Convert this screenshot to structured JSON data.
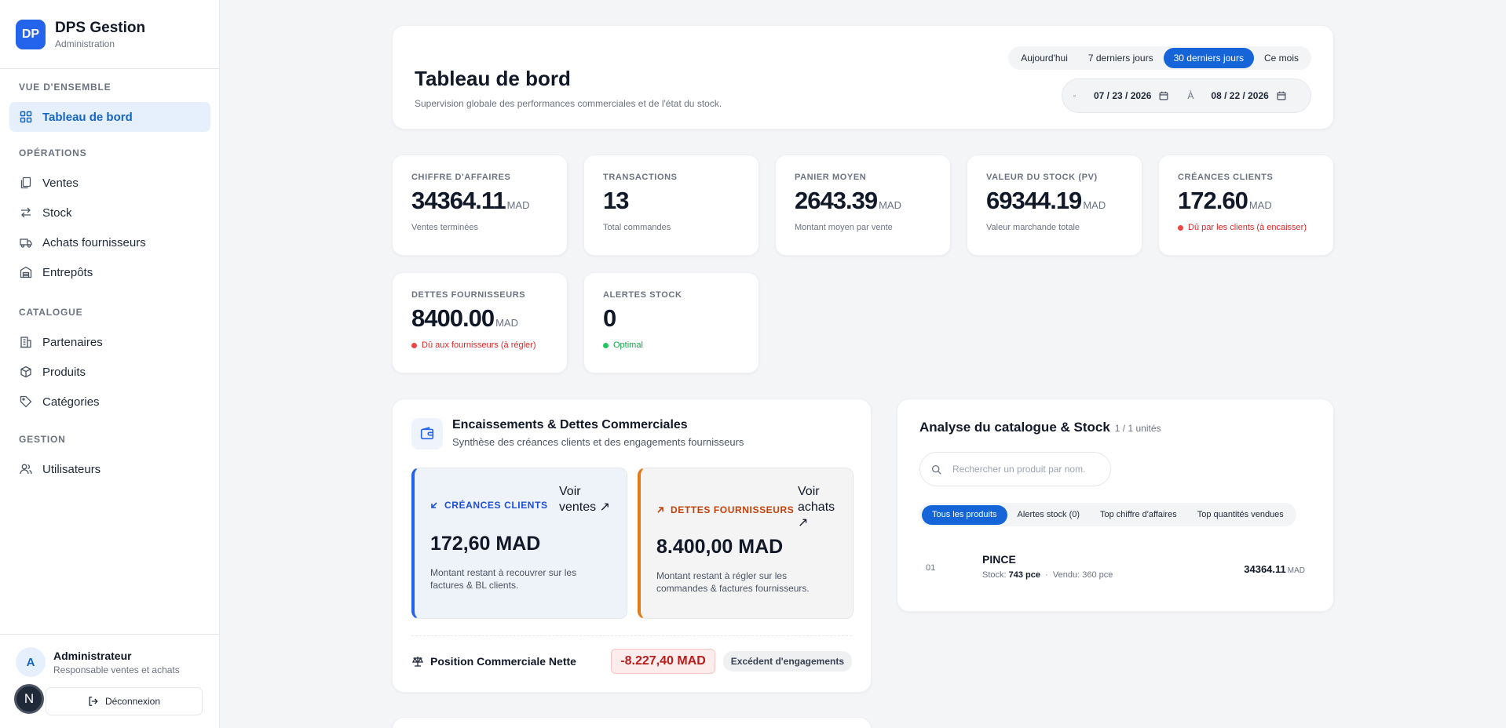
{
  "brand": {
    "logo": "DP",
    "name": "DPS Gestion",
    "subtitle": "Administration"
  },
  "sidebar": {
    "sections": [
      {
        "title": "VUE D'ENSEMBLE"
      },
      {
        "title": "OPÉRATIONS"
      },
      {
        "title": "CATALOGUE"
      },
      {
        "title": "GESTION"
      }
    ],
    "items": [
      {
        "label": "Tableau de bord",
        "icon": "grid-icon",
        "active": true
      },
      {
        "label": "Ventes",
        "icon": "documents-icon"
      },
      {
        "label": "Stock",
        "icon": "swap-arrows-icon"
      },
      {
        "label": "Achats fournisseurs",
        "icon": "truck-icon"
      },
      {
        "label": "Entrepôts",
        "icon": "warehouse-icon"
      },
      {
        "label": "Partenaires",
        "icon": "building-icon"
      },
      {
        "label": "Produits",
        "icon": "box-icon"
      },
      {
        "label": "Catégories",
        "icon": "tag-icon"
      },
      {
        "label": "Utilisateurs",
        "icon": "users-icon"
      }
    ]
  },
  "user": {
    "initial": "A",
    "name": "Administrateur",
    "role": "Responsable ventes et achats",
    "logout_label": "Déconnexion",
    "badge": "N"
  },
  "header": {
    "title": "Tableau de bord",
    "subtitle": "Supervision globale des performances commerciales et de l'état du stock.",
    "periods": [
      "Aujourd'hui",
      "7 derniers jours",
      "30 derniers jours",
      "Ce mois"
    ],
    "active_period": "30 derniers jours",
    "date_from": "07 / 23 / 2026",
    "date_sep": "À",
    "date_to": "08 / 22 / 2026"
  },
  "kpis": [
    {
      "label": "CHIFFRE D'AFFAIRES",
      "value": "34364.11",
      "unit": "MAD",
      "foot": "Ventes terminées",
      "status": "none"
    },
    {
      "label": "TRANSACTIONS",
      "value": "13",
      "unit": "",
      "foot": "Total commandes",
      "status": "none"
    },
    {
      "label": "PANIER MOYEN",
      "value": "2643.39",
      "unit": "MAD",
      "foot": "Montant moyen par vente",
      "status": "none"
    },
    {
      "label": "VALEUR DU STOCK (PV)",
      "value": "69344.19",
      "unit": "MAD",
      "foot": "Valeur marchande totale",
      "status": "none"
    },
    {
      "label": "CRÉANCES CLIENTS",
      "value": "172.60",
      "unit": "MAD",
      "foot": "Dû par les clients (à encaisser)",
      "status": "red"
    },
    {
      "label": "DETTES FOURNISSEURS",
      "value": "8400.00",
      "unit": "MAD",
      "foot": "Dû aux fournisseurs (à régler)",
      "status": "red"
    },
    {
      "label": "ALERTES STOCK",
      "value": "0",
      "unit": "",
      "foot": "Optimal",
      "status": "green"
    }
  ],
  "encaissements": {
    "title": "Encaissements & Dettes Commerciales",
    "subtitle": "Synthèse des créances clients et des engagements fournisseurs",
    "creances": {
      "label": "CRÉANCES CLIENTS",
      "link": "Voir ventes",
      "value": "172,60 MAD",
      "desc": "Montant restant à recouvrer sur les factures & BL clients.",
      "color": "#2463eb"
    },
    "dettes": {
      "label": "DETTES FOURNISSEURS",
      "link": "Voir achats",
      "value": "8.400,00 MAD",
      "desc": "Montant restant à régler sur les commandes & factures fournisseurs.",
      "color": "#e07a1a"
    },
    "net_label": "Position Commerciale Nette",
    "net_value": "-8.227,40 MAD",
    "net_badge": "Excédent d'engagements"
  },
  "catalogue": {
    "title": "Analyse du catalogue & Stock",
    "count": "1 / 1 unités",
    "search_placeholder": "Rechercher un produit par nom.",
    "filters": [
      "Tous les produits",
      "Alertes stock (0)",
      "Top chiffre d'affaires",
      "Top quantités vendues"
    ],
    "active_filter": "Tous les produits",
    "products": [
      {
        "index": "01",
        "name": "PINCE",
        "stock_label": "Stock:",
        "stock": "743 pce",
        "sold": "Vendu: 360 pce",
        "revenue": "34364.11",
        "unit": "MAD"
      }
    ]
  }
}
